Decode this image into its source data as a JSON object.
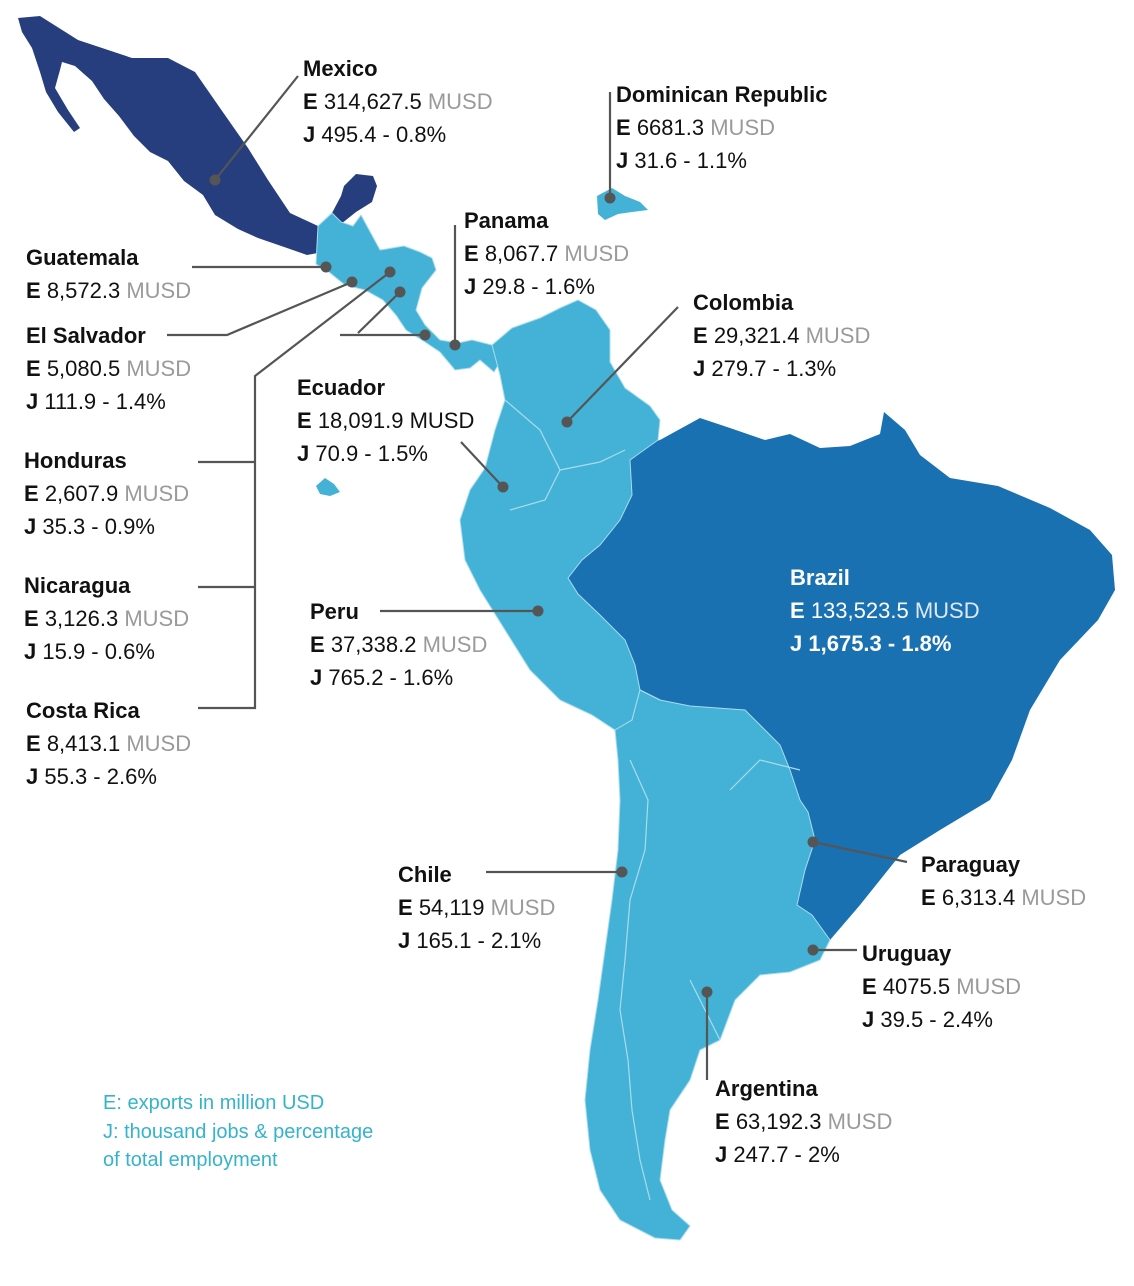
{
  "colors": {
    "mexico": "#263e7e",
    "brazil": "#1a71b2",
    "others": "#43b2d6",
    "border": "#a9dced",
    "leader": "#555555",
    "legend_text": "#35b3cc",
    "unit_text": "#9a9a9a"
  },
  "countries": [
    {
      "id": "mexico",
      "name": "Mexico",
      "exports": "314,627.5",
      "unit": "MUSD",
      "jobs": "495.4 - 0.8%"
    },
    {
      "id": "dominican-republic",
      "name": "Dominican Republic",
      "exports": "6681.3",
      "unit": "MUSD",
      "jobs": "31.6 - 1.1%"
    },
    {
      "id": "panama",
      "name": "Panama",
      "exports": "8,067.7",
      "unit": "MUSD",
      "jobs": "29.8 - 1.6%"
    },
    {
      "id": "guatemala",
      "name": "Guatemala",
      "exports": "8,572.3",
      "unit": "MUSD",
      "jobs": ""
    },
    {
      "id": "colombia",
      "name": "Colombia",
      "exports": "29,321.4",
      "unit": "MUSD",
      "jobs": "279.7 - 1.3%"
    },
    {
      "id": "el-salvador",
      "name": "El Salvador",
      "exports": "5,080.5",
      "unit": "MUSD",
      "jobs": "111.9 - 1.4%"
    },
    {
      "id": "ecuador",
      "name": "Ecuador",
      "exports": "18,091.9",
      "unit": "MUSD",
      "jobs": "70.9 - 1.5%"
    },
    {
      "id": "honduras",
      "name": "Honduras",
      "exports": "2,607.9",
      "unit": "MUSD",
      "jobs": "35.3 - 0.9%"
    },
    {
      "id": "brazil",
      "name": "Brazil",
      "exports": "133,523.5",
      "unit": "MUSD",
      "jobs": "1,675.3 - 1.8%"
    },
    {
      "id": "nicaragua",
      "name": "Nicaragua",
      "exports": "3,126.3",
      "unit": "MUSD",
      "jobs": "15.9 - 0.6%"
    },
    {
      "id": "peru",
      "name": "Peru",
      "exports": "37,338.2",
      "unit": "MUSD",
      "jobs": "765.2 - 1.6%"
    },
    {
      "id": "costa-rica",
      "name": "Costa Rica",
      "exports": "8,413.1",
      "unit": "MUSD",
      "jobs": "55.3 - 2.6%"
    },
    {
      "id": "paraguay",
      "name": "Paraguay",
      "exports": "6,313.4",
      "unit": "MUSD",
      "jobs": ""
    },
    {
      "id": "chile",
      "name": "Chile",
      "exports": "54,119",
      "unit": "MUSD",
      "jobs": "165.1 - 2.1%"
    },
    {
      "id": "uruguay",
      "name": "Uruguay",
      "exports": "4075.5",
      "unit": "MUSD",
      "jobs": "39.5 - 2.4%"
    },
    {
      "id": "argentina",
      "name": "Argentina",
      "exports": "63,192.3",
      "unit": "MUSD",
      "jobs": "247.7 - 2%"
    }
  ],
  "legend": {
    "line1": "E: exports in million USD",
    "line2": "J: thousand jobs & percentage",
    "line3": "of total employment"
  },
  "prefix": {
    "exports": "E",
    "jobs": "J"
  }
}
